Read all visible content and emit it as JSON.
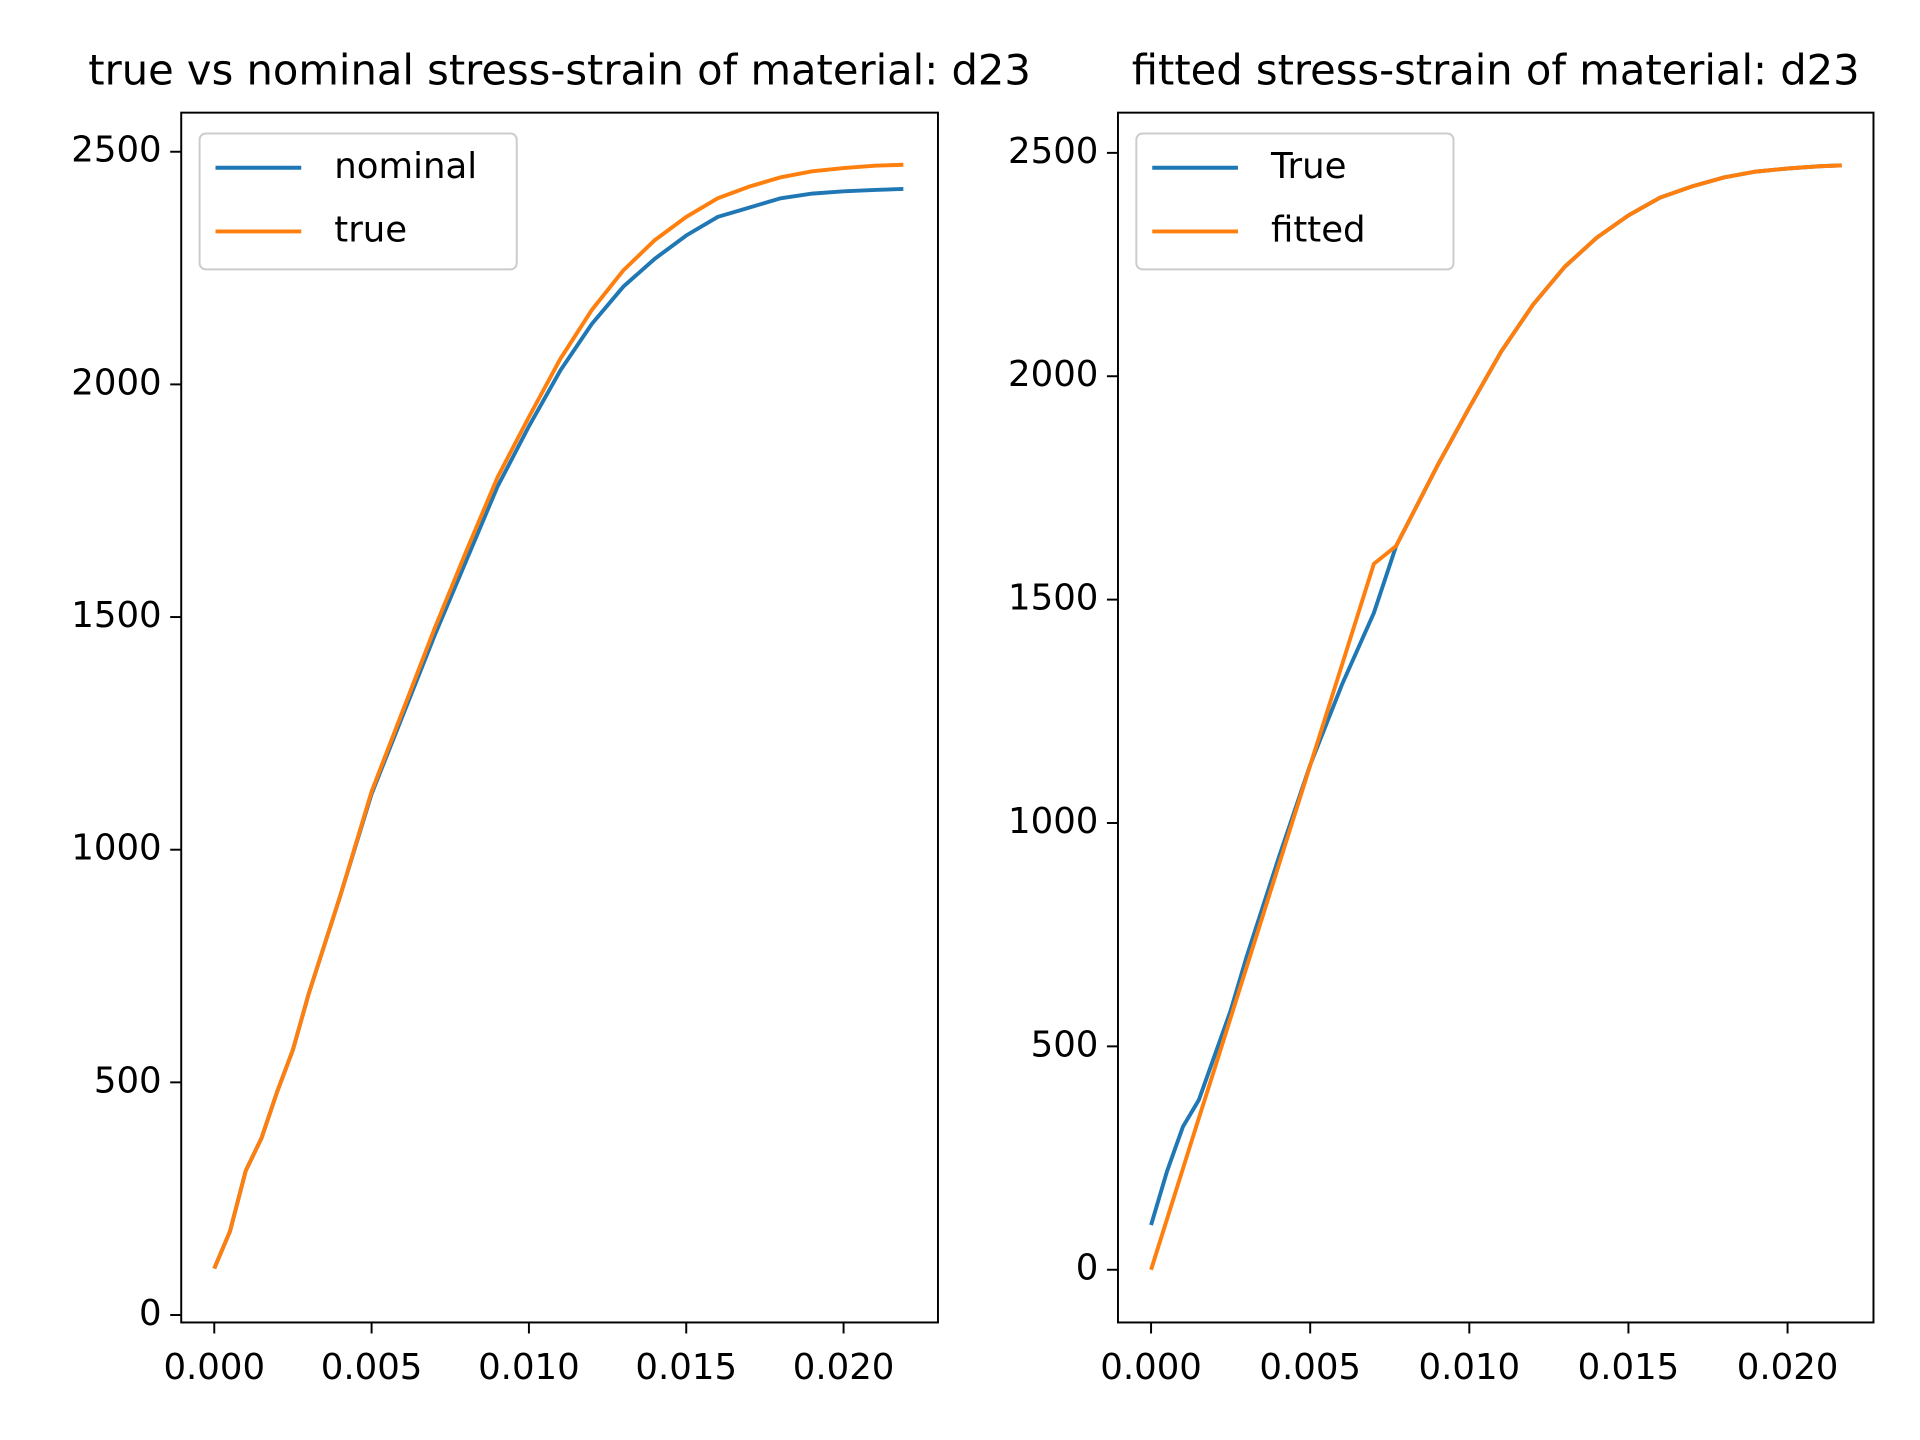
{
  "chart_data": [
    {
      "type": "line",
      "title": "true vs nominal stress-strain of material: d23",
      "legend": "upper left",
      "grid": false,
      "xlim": [
        -0.00105,
        0.023
      ],
      "ylim": [
        -16,
        2584
      ],
      "xticks": [
        {
          "value": 0,
          "label": "0.000"
        },
        0.005,
        {
          "value": 0.01,
          "label": "0.010"
        },
        0.015,
        {
          "value": 0.02,
          "label": "0.020"
        }
      ],
      "yticks": [
        0,
        500,
        1000,
        1500,
        2000,
        2500
      ],
      "x": [
        0,
        0.0005,
        0.001,
        0.0015,
        0.002,
        0.0025,
        0.003,
        0.004,
        0.005,
        0.006,
        0.007,
        0.008,
        0.009,
        0.01,
        0.011,
        0.012,
        0.013,
        0.014,
        0.015,
        0.016,
        0.017,
        0.018,
        0.019,
        0.02,
        0.021,
        0.0219
      ],
      "series": [
        {
          "name": "nominal",
          "color": "#1f77b4",
          "values": [
            100,
            180,
            310,
            380,
            480,
            570,
            690,
            900,
            1120,
            1290,
            1460,
            1620,
            1780,
            1910,
            2030,
            2130,
            2210,
            2270,
            2320,
            2360,
            2380,
            2400,
            2410,
            2415,
            2418,
            2420
          ]
        },
        {
          "name": "true",
          "color": "#ff7f0e",
          "values": [
            100,
            180,
            310,
            380,
            480,
            570,
            690,
            900,
            1125,
            1300,
            1475,
            1640,
            1800,
            1930,
            2055,
            2160,
            2245,
            2310,
            2360,
            2400,
            2425,
            2445,
            2458,
            2465,
            2470,
            2472
          ]
        }
      ]
    },
    {
      "type": "line",
      "title": "fitted stress-strain of material: d23",
      "legend": "upper left",
      "grid": false,
      "xlim": [
        -0.00104,
        0.0227
      ],
      "ylim": [
        -118,
        2590
      ],
      "xticks": [
        {
          "value": 0,
          "label": "0.000"
        },
        0.005,
        {
          "value": 0.01,
          "label": "0.010"
        },
        0.015,
        {
          "value": 0.02,
          "label": "0.020"
        }
      ],
      "yticks": [
        0,
        500,
        1000,
        1500,
        2000,
        2500
      ],
      "x": [
        0,
        0.0005,
        0.001,
        0.0015,
        0.002,
        0.0025,
        0.003,
        0.004,
        0.005,
        0.006,
        0.007,
        0.0077,
        0.009,
        0.01,
        0.011,
        0.012,
        0.013,
        0.014,
        0.015,
        0.016,
        0.017,
        0.018,
        0.019,
        0.02,
        0.021,
        0.0217
      ],
      "series": [
        {
          "name": "True",
          "color": "#1f77b4",
          "values": [
            100,
            220,
            320,
            380,
            480,
            580,
            700,
            920,
            1130,
            1310,
            1470,
            1620,
            1800,
            1930,
            2055,
            2160,
            2245,
            2310,
            2360,
            2400,
            2425,
            2445,
            2458,
            2465,
            2470,
            2472
          ]
        },
        {
          "name": "fitted",
          "color": "#ff7f0e",
          "values": [
            0,
            113,
            226,
            339,
            451,
            564,
            677,
            903,
            1129,
            1354,
            1580,
            1620,
            1800,
            1930,
            2055,
            2160,
            2245,
            2310,
            2360,
            2400,
            2425,
            2445,
            2458,
            2465,
            2470,
            2472
          ]
        }
      ]
    }
  ]
}
